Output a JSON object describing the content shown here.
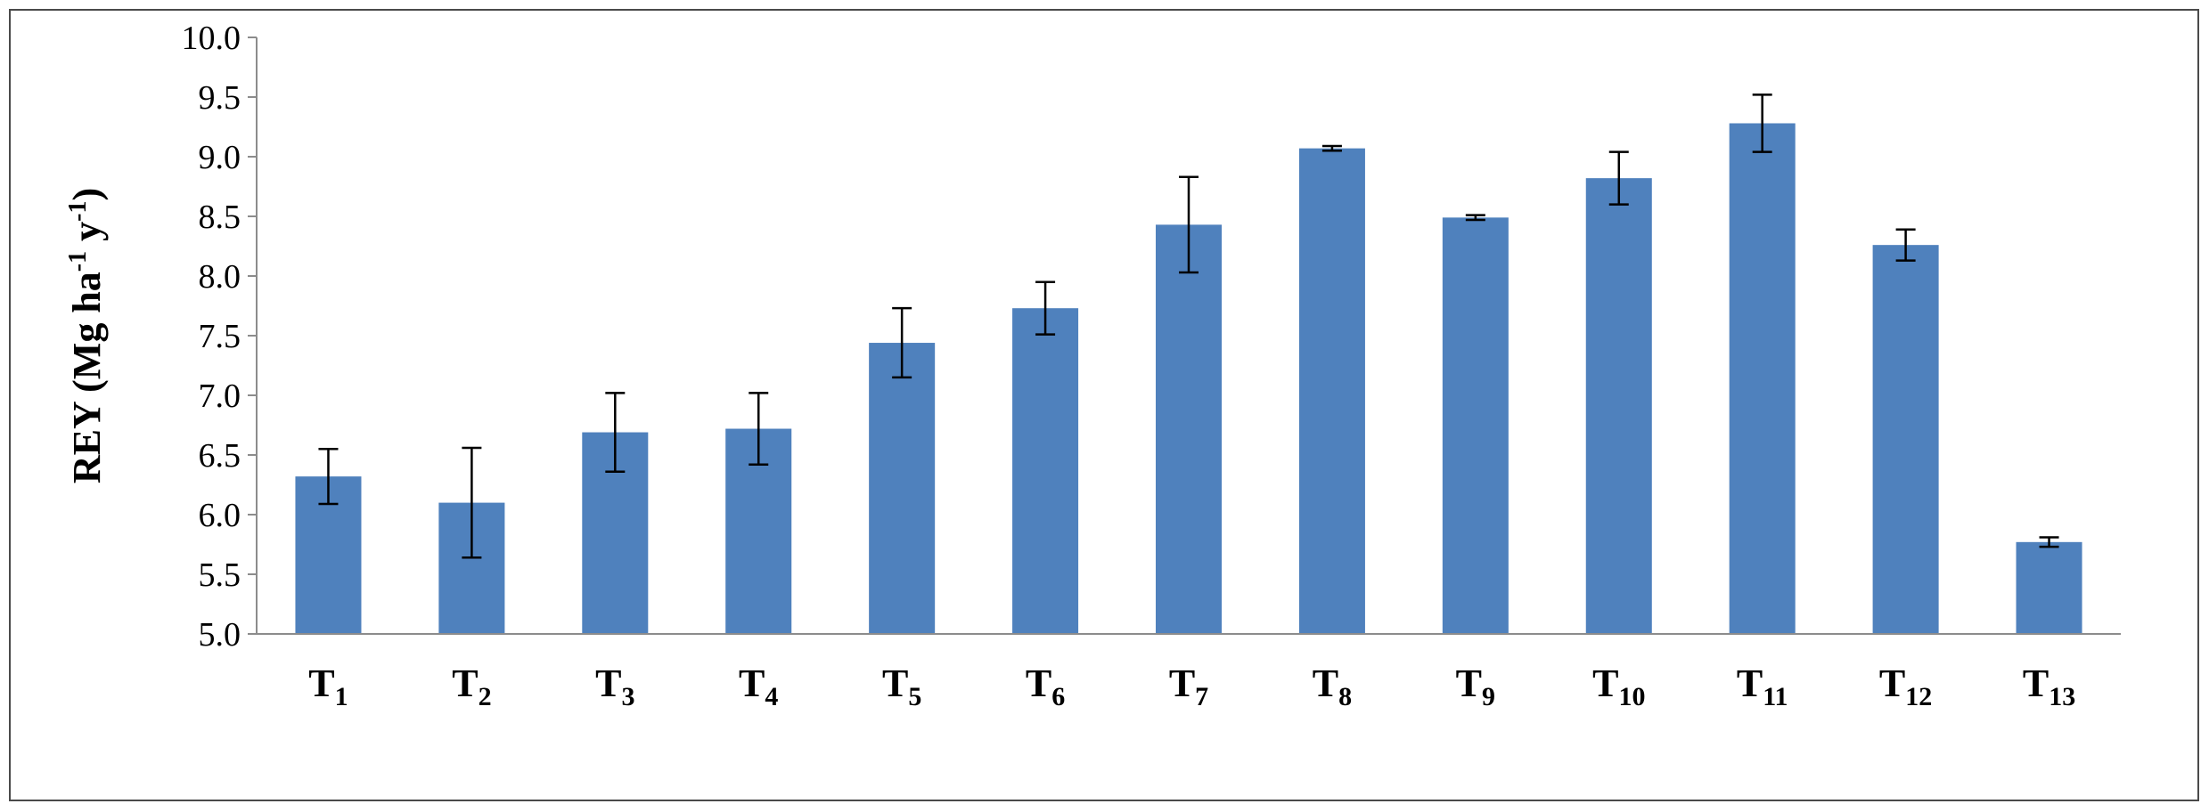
{
  "chart_data": {
    "type": "bar",
    "categories": [
      {
        "base": "T",
        "sub": "1"
      },
      {
        "base": "T",
        "sub": "2"
      },
      {
        "base": "T",
        "sub": "3"
      },
      {
        "base": "T",
        "sub": "4"
      },
      {
        "base": "T",
        "sub": "5"
      },
      {
        "base": "T",
        "sub": "6"
      },
      {
        "base": "T",
        "sub": "7"
      },
      {
        "base": "T",
        "sub": "8"
      },
      {
        "base": "T",
        "sub": "9"
      },
      {
        "base": "T",
        "sub": "10"
      },
      {
        "base": "T",
        "sub": "11"
      },
      {
        "base": "T",
        "sub": "12"
      },
      {
        "base": "T",
        "sub": "13"
      }
    ],
    "values": [
      6.32,
      6.1,
      6.69,
      6.72,
      7.44,
      7.73,
      8.43,
      9.07,
      8.49,
      8.82,
      9.28,
      8.26,
      5.77
    ],
    "errors": [
      0.23,
      0.46,
      0.33,
      0.3,
      0.29,
      0.22,
      0.4,
      0.02,
      0.02,
      0.22,
      0.24,
      0.13,
      0.04
    ],
    "ylabel": {
      "prefix": "REY (Mg ha",
      "sup1": "-1",
      "middle": " y",
      "sup2": "-1",
      "suffix": ")"
    },
    "ylim": [
      5.0,
      10.0
    ],
    "yticks": [
      "5.0",
      "5.5",
      "6.0",
      "6.5",
      "7.0",
      "7.5",
      "8.0",
      "8.5",
      "9.0",
      "9.5",
      "10.0"
    ],
    "bar_color": "#4f81bd",
    "grid": false,
    "legend": "none"
  }
}
